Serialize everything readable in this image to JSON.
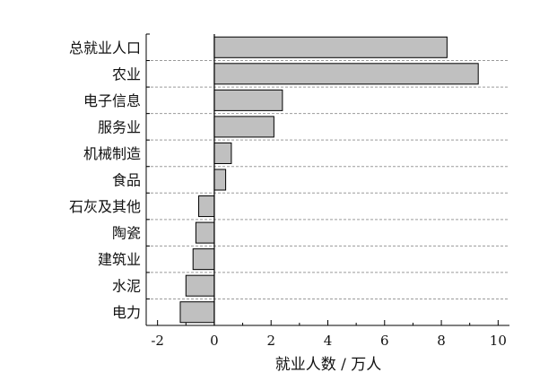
{
  "chart_data": {
    "type": "bar",
    "orientation": "horizontal",
    "categories": [
      "总就业人口",
      "农业",
      "电子信息",
      "服务业",
      "机械制造",
      "食品",
      "石灰及其他",
      "陶瓷",
      "建筑业",
      "水泥",
      "电力"
    ],
    "values": [
      8.2,
      9.3,
      2.4,
      2.1,
      0.6,
      0.4,
      -0.55,
      -0.65,
      -0.75,
      -1.0,
      -1.2
    ],
    "title": "",
    "xlabel": "就业人数 / 万人",
    "ylabel": "",
    "xlim": [
      -2.4,
      10.4
    ],
    "xticks": [
      "-2",
      "0",
      "2",
      "4",
      "6",
      "8",
      "10"
    ],
    "grid": "horizontal dashed separators between categories",
    "bar_color": "#c0c0c0",
    "bar_edge_color": "#000000"
  }
}
